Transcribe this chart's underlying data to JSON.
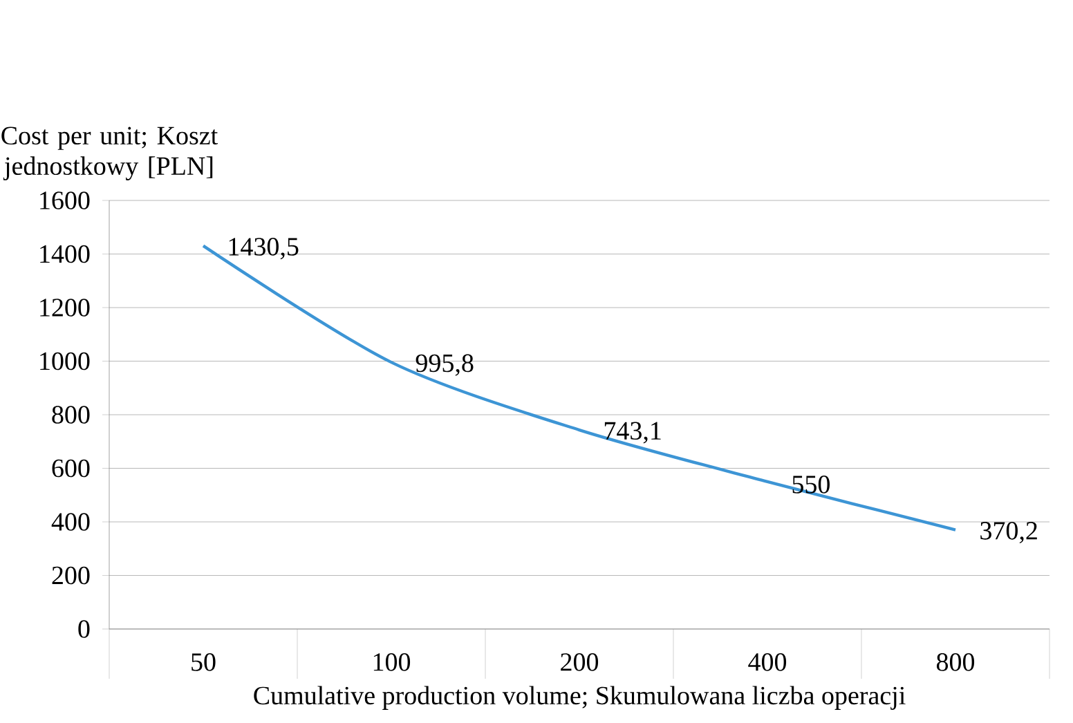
{
  "chart_data": {
    "type": "line",
    "xlabel": "Cumulative production volume; Skumulowana liczba operacji",
    "ylabel": "Cost per unit; Koszt jednostkowy [PLN]",
    "categories": [
      "50",
      "100",
      "200",
      "400",
      "800"
    ],
    "series": [
      {
        "color": "#3d95d5",
        "values": [
          1430.5,
          995.8,
          743.1,
          550,
          370.2
        ],
        "value_labels": [
          "1430,5",
          "995,8",
          "743,1",
          "550",
          "370,2"
        ]
      }
    ],
    "ylim": [
      0,
      1600
    ],
    "yticks": [
      0,
      200,
      400,
      600,
      800,
      1000,
      1200,
      1400,
      1600
    ],
    "grid": "y",
    "marker": "none",
    "line_style": "solid"
  }
}
